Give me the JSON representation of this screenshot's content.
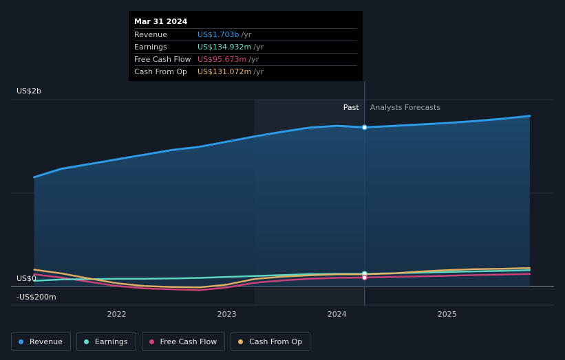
{
  "chart_data": {
    "type": "line",
    "x_ticks": [
      "2022",
      "2023",
      "2024",
      "2025"
    ],
    "y_ticks": [
      "US$2b",
      "US$0",
      "-US$200m"
    ],
    "past_label": "Past",
    "forecast_label": "Analysts Forecasts",
    "colors": {
      "Revenue": "#2d9be6",
      "Earnings": "#5fe0c8",
      "Free Cash Flow": "#d4427a",
      "Cash From Op": "#e8b464"
    },
    "series": [
      {
        "name": "Revenue",
        "x": [
          2021.25,
          2021.5,
          2021.75,
          2022.0,
          2022.25,
          2022.5,
          2022.75,
          2023.0,
          2023.25,
          2023.5,
          2023.75,
          2024.0,
          2024.25,
          2024.5,
          2024.75,
          2025.0,
          2025.25,
          2025.5,
          2025.75
        ],
        "y": [
          1170,
          1260,
          1310,
          1360,
          1410,
          1460,
          1495,
          1550,
          1605,
          1655,
          1700,
          1720,
          1703,
          1718,
          1733,
          1750,
          1770,
          1795,
          1825
        ]
      },
      {
        "name": "Earnings",
        "x": [
          2021.25,
          2021.5,
          2021.75,
          2022.0,
          2022.25,
          2022.5,
          2022.75,
          2023.0,
          2023.25,
          2023.5,
          2023.75,
          2024.0,
          2024.25,
          2024.5,
          2024.75,
          2025.0,
          2025.25,
          2025.5,
          2025.75
        ],
        "y": [
          60,
          75,
          78,
          82,
          83,
          86,
          92,
          102,
          112,
          122,
          132,
          135,
          134.932,
          142,
          148,
          155,
          162,
          168,
          174
        ]
      },
      {
        "name": "Free Cash Flow",
        "x": [
          2021.25,
          2021.5,
          2021.75,
          2022.0,
          2022.25,
          2022.5,
          2022.75,
          2023.0,
          2023.25,
          2023.5,
          2023.75,
          2024.0,
          2024.25,
          2024.5,
          2024.75,
          2025.0,
          2025.25,
          2025.5,
          2025.75
        ],
        "y": [
          130,
          95,
          50,
          5,
          -20,
          -30,
          -40,
          -10,
          40,
          65,
          82,
          92,
          95.673,
          102,
          108,
          115,
          122,
          128,
          134
        ]
      },
      {
        "name": "Cash From Op",
        "x": [
          2021.25,
          2021.5,
          2021.75,
          2022.0,
          2022.25,
          2022.5,
          2022.75,
          2023.0,
          2023.25,
          2023.5,
          2023.75,
          2024.0,
          2024.25,
          2024.5,
          2024.75,
          2025.0,
          2025.25,
          2025.5,
          2025.75
        ],
        "y": [
          180,
          140,
          85,
          35,
          5,
          -5,
          -10,
          20,
          80,
          105,
          120,
          130,
          131.072,
          140,
          160,
          175,
          185,
          190,
          198
        ]
      }
    ],
    "xlim": [
      2021.24,
      2025.97
    ],
    "ylim": [
      -200,
      2000
    ],
    "highlight_x": 2024.25,
    "tooltip": {
      "date": "Mar 31 2024",
      "rows": [
        {
          "label": "Revenue",
          "value": "US$1.703b",
          "unit": "/yr",
          "color": "#2d9be6"
        },
        {
          "label": "Earnings",
          "value": "US$134.932m",
          "unit": "/yr",
          "color": "#5fe0c8"
        },
        {
          "label": "Free Cash Flow",
          "value": "US$95.673m",
          "unit": "/yr",
          "color": "#d4427a"
        },
        {
          "label": "Cash From Op",
          "value": "US$131.072m",
          "unit": "/yr",
          "color": "#e8b464"
        }
      ]
    }
  },
  "legend": [
    {
      "label": "Revenue",
      "color": "#2d9be6"
    },
    {
      "label": "Earnings",
      "color": "#5fe0c8"
    },
    {
      "label": "Free Cash Flow",
      "color": "#d4427a"
    },
    {
      "label": "Cash From Op",
      "color": "#e8b464"
    }
  ]
}
